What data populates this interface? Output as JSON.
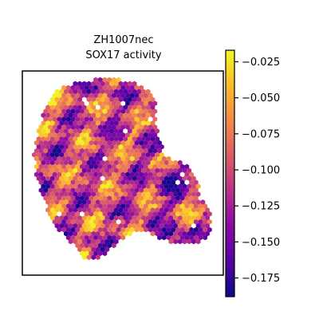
{
  "chart_data": {
    "type": "heatmap",
    "title": "ZH1007nec",
    "subtitle": "SOX17 activity",
    "colormap": "plasma",
    "colorbar": {
      "range": [
        -0.188,
        -0.017
      ],
      "ticks": [
        {
          "value": -0.025,
          "label": "−0.025"
        },
        {
          "value": -0.05,
          "label": "−0.050"
        },
        {
          "value": -0.075,
          "label": "−0.075"
        },
        {
          "value": -0.1,
          "label": "−0.100"
        },
        {
          "value": -0.125,
          "label": "−0.125"
        },
        {
          "value": -0.15,
          "label": "−0.150"
        },
        {
          "value": -0.175,
          "label": "−0.175"
        }
      ]
    },
    "axes": {
      "x_ticks": "none",
      "y_ticks": "none",
      "grid": false
    },
    "legend": "colorbar-right"
  }
}
